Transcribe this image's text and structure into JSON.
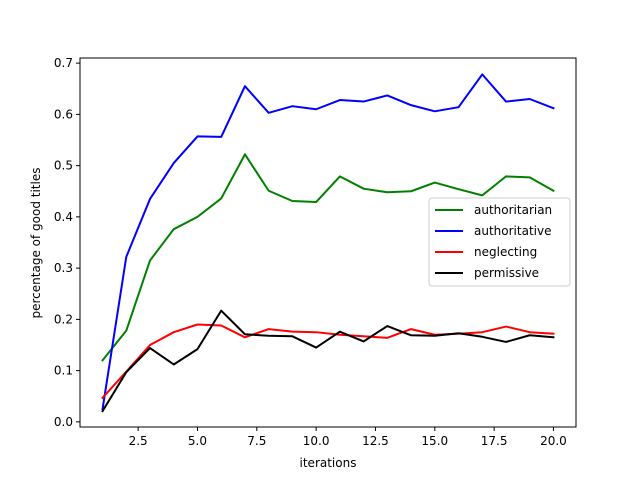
{
  "chart_data": {
    "type": "line",
    "title": "",
    "xlabel": "iterations",
    "ylabel": "percentage of good titles",
    "xlim": [
      0.05,
      20.95
    ],
    "ylim": [
      -0.01,
      0.71
    ],
    "x_ticks": [
      2.5,
      5.0,
      7.5,
      10.0,
      12.5,
      15.0,
      17.5,
      20.0
    ],
    "x_tick_labels": [
      "2.5",
      "5.0",
      "7.5",
      "10.0",
      "12.5",
      "15.0",
      "17.5",
      "20.0"
    ],
    "y_ticks": [
      0.0,
      0.1,
      0.2,
      0.3,
      0.4,
      0.5,
      0.6,
      0.7
    ],
    "y_tick_labels": [
      "0.0",
      "0.1",
      "0.2",
      "0.3",
      "0.4",
      "0.5",
      "0.6",
      "0.7"
    ],
    "grid": false,
    "legend_position": "center-right",
    "x": [
      1,
      2,
      3,
      4,
      5,
      6,
      7,
      8,
      9,
      10,
      11,
      12,
      13,
      14,
      15,
      16,
      17,
      18,
      19,
      20
    ],
    "series": [
      {
        "name": "authoritarian",
        "color": "#008000",
        "values": [
          0.12,
          0.178,
          0.315,
          0.376,
          0.4,
          0.436,
          0.522,
          0.451,
          0.431,
          0.429,
          0.479,
          0.455,
          0.448,
          0.45,
          0.467,
          0.454,
          0.442,
          0.479,
          0.477,
          0.451
        ]
      },
      {
        "name": "authoritative",
        "color": "#0000ff",
        "values": [
          0.025,
          0.322,
          0.435,
          0.505,
          0.557,
          0.556,
          0.655,
          0.603,
          0.616,
          0.61,
          0.628,
          0.625,
          0.637,
          0.618,
          0.606,
          0.614,
          0.678,
          0.625,
          0.63,
          0.612
        ]
      },
      {
        "name": "neglecting",
        "color": "#ff0000",
        "values": [
          0.047,
          0.098,
          0.15,
          0.175,
          0.19,
          0.188,
          0.165,
          0.181,
          0.176,
          0.175,
          0.17,
          0.167,
          0.164,
          0.181,
          0.17,
          0.172,
          0.175,
          0.186,
          0.175,
          0.172
        ]
      },
      {
        "name": "permissive",
        "color": "#000000",
        "values": [
          0.021,
          0.097,
          0.144,
          0.112,
          0.142,
          0.217,
          0.171,
          0.168,
          0.167,
          0.145,
          0.176,
          0.157,
          0.187,
          0.169,
          0.168,
          0.173,
          0.166,
          0.156,
          0.169,
          0.165
        ]
      }
    ]
  }
}
